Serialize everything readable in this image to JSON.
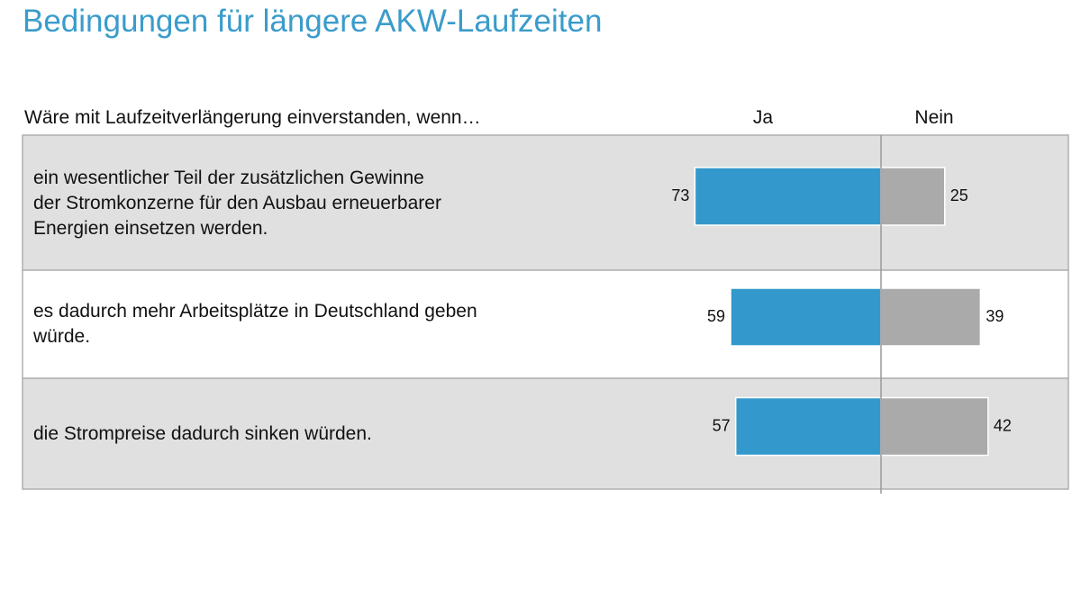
{
  "chart_data": {
    "type": "diverging_bar",
    "title": "Bedingungen für längere AKW-Laufzeiten",
    "category_header": "Wäre mit Laufzeitverlängerung einverstanden, wenn…",
    "categories": [
      "ein wesentlicher Teil der zusätzlichen Gewinne\nder Stromkonzerne für den Ausbau erneuerbarer\nEnergien einsetzen werden.",
      "es dadurch mehr Arbeitsplätze in Deutschland geben\nwürde.",
      "die Strompreise dadurch sinken würden."
    ],
    "series": [
      {
        "name": "Ja",
        "color": "#3399cc",
        "values": [
          73,
          59,
          57
        ]
      },
      {
        "name": "Nein",
        "color": "#aaaaaa",
        "values": [
          25,
          39,
          42
        ]
      }
    ]
  }
}
